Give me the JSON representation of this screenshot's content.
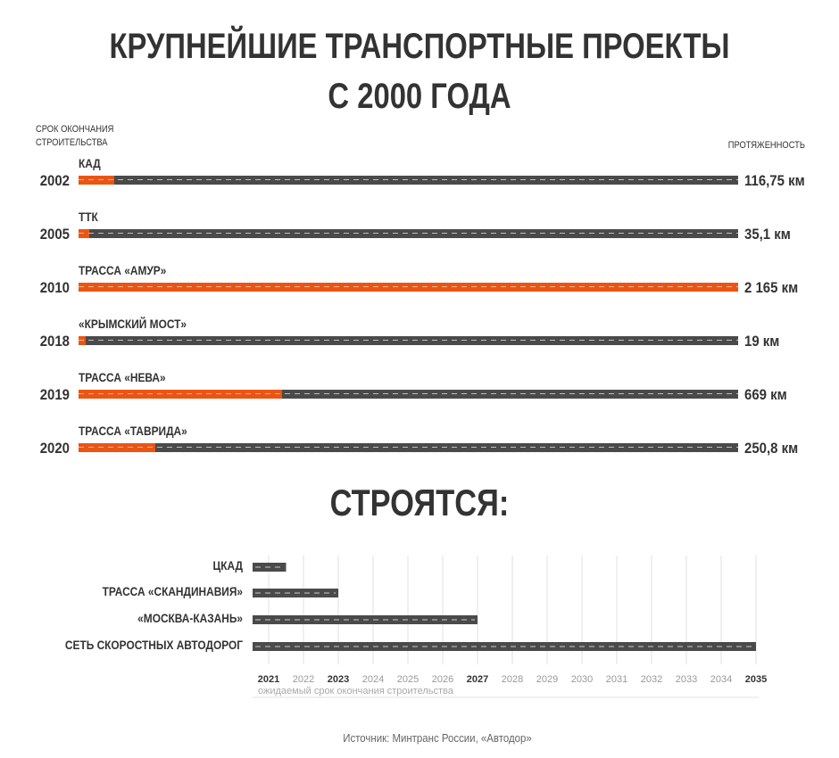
{
  "title_line1": "КРУПНЕЙШИЕ ТРАНСПОРТНЫЕ ПРОЕКТЫ",
  "title_line2": "С 2000 ГОДА",
  "header_left_line1": "СРОК ОКОНЧАНИЯ",
  "header_left_line2": "СТРОИТЕЛЬСТВА",
  "header_right": "ПРОТЯЖЕННОСТЬ",
  "colors": {
    "accent": "#ea5514",
    "track": "#4a4a4a",
    "text": "#333333"
  },
  "completed": [
    {
      "year": "2002",
      "name": "КАД",
      "length_label": "116,75 км",
      "length_km": 116.75
    },
    {
      "year": "2005",
      "name": "ТТК",
      "length_label": "35,1 км",
      "length_km": 35.1
    },
    {
      "year": "2010",
      "name": "ТРАССА «АМУР»",
      "length_label": "2 165 км",
      "length_km": 2165
    },
    {
      "year": "2018",
      "name": "«КРЫМСКИЙ МОСТ»",
      "length_label": "19 км",
      "length_km": 19
    },
    {
      "year": "2019",
      "name": "ТРАССА «НЕВА»",
      "length_label": "669 км",
      "length_km": 669
    },
    {
      "year": "2020",
      "name": "ТРАССА «ТАВРИДА»",
      "length_label": "250,8 км",
      "length_km": 250.8
    }
  ],
  "subtitle": "СТРОЯТСЯ:",
  "chart_data": {
    "type": "bar",
    "orientation": "horizontal",
    "categories": [
      "ЦКАД",
      "ТРАССА «СКАНДИНАВИЯ»",
      "«МОСКВА-КАЗАНЬ»",
      "СЕТЬ СКОРОСТНЫХ АВТОДОРОГ"
    ],
    "start_year": 2021,
    "values": [
      2021.5,
      2023,
      2027,
      2035
    ],
    "x_ticks": [
      "2021",
      "2022",
      "2023",
      "2024",
      "2025",
      "2026",
      "2027",
      "2028",
      "2029",
      "2030",
      "2031",
      "2032",
      "2033",
      "2034",
      "2035"
    ],
    "x_ticks_bold": [
      "2021",
      "2023",
      "2027",
      "2035"
    ],
    "xlim": [
      2021,
      2035
    ],
    "xlabel": "ожидаемый срок окончания строительства",
    "grid": true
  },
  "source": "Источник: Минтранс России, «Автодор»"
}
